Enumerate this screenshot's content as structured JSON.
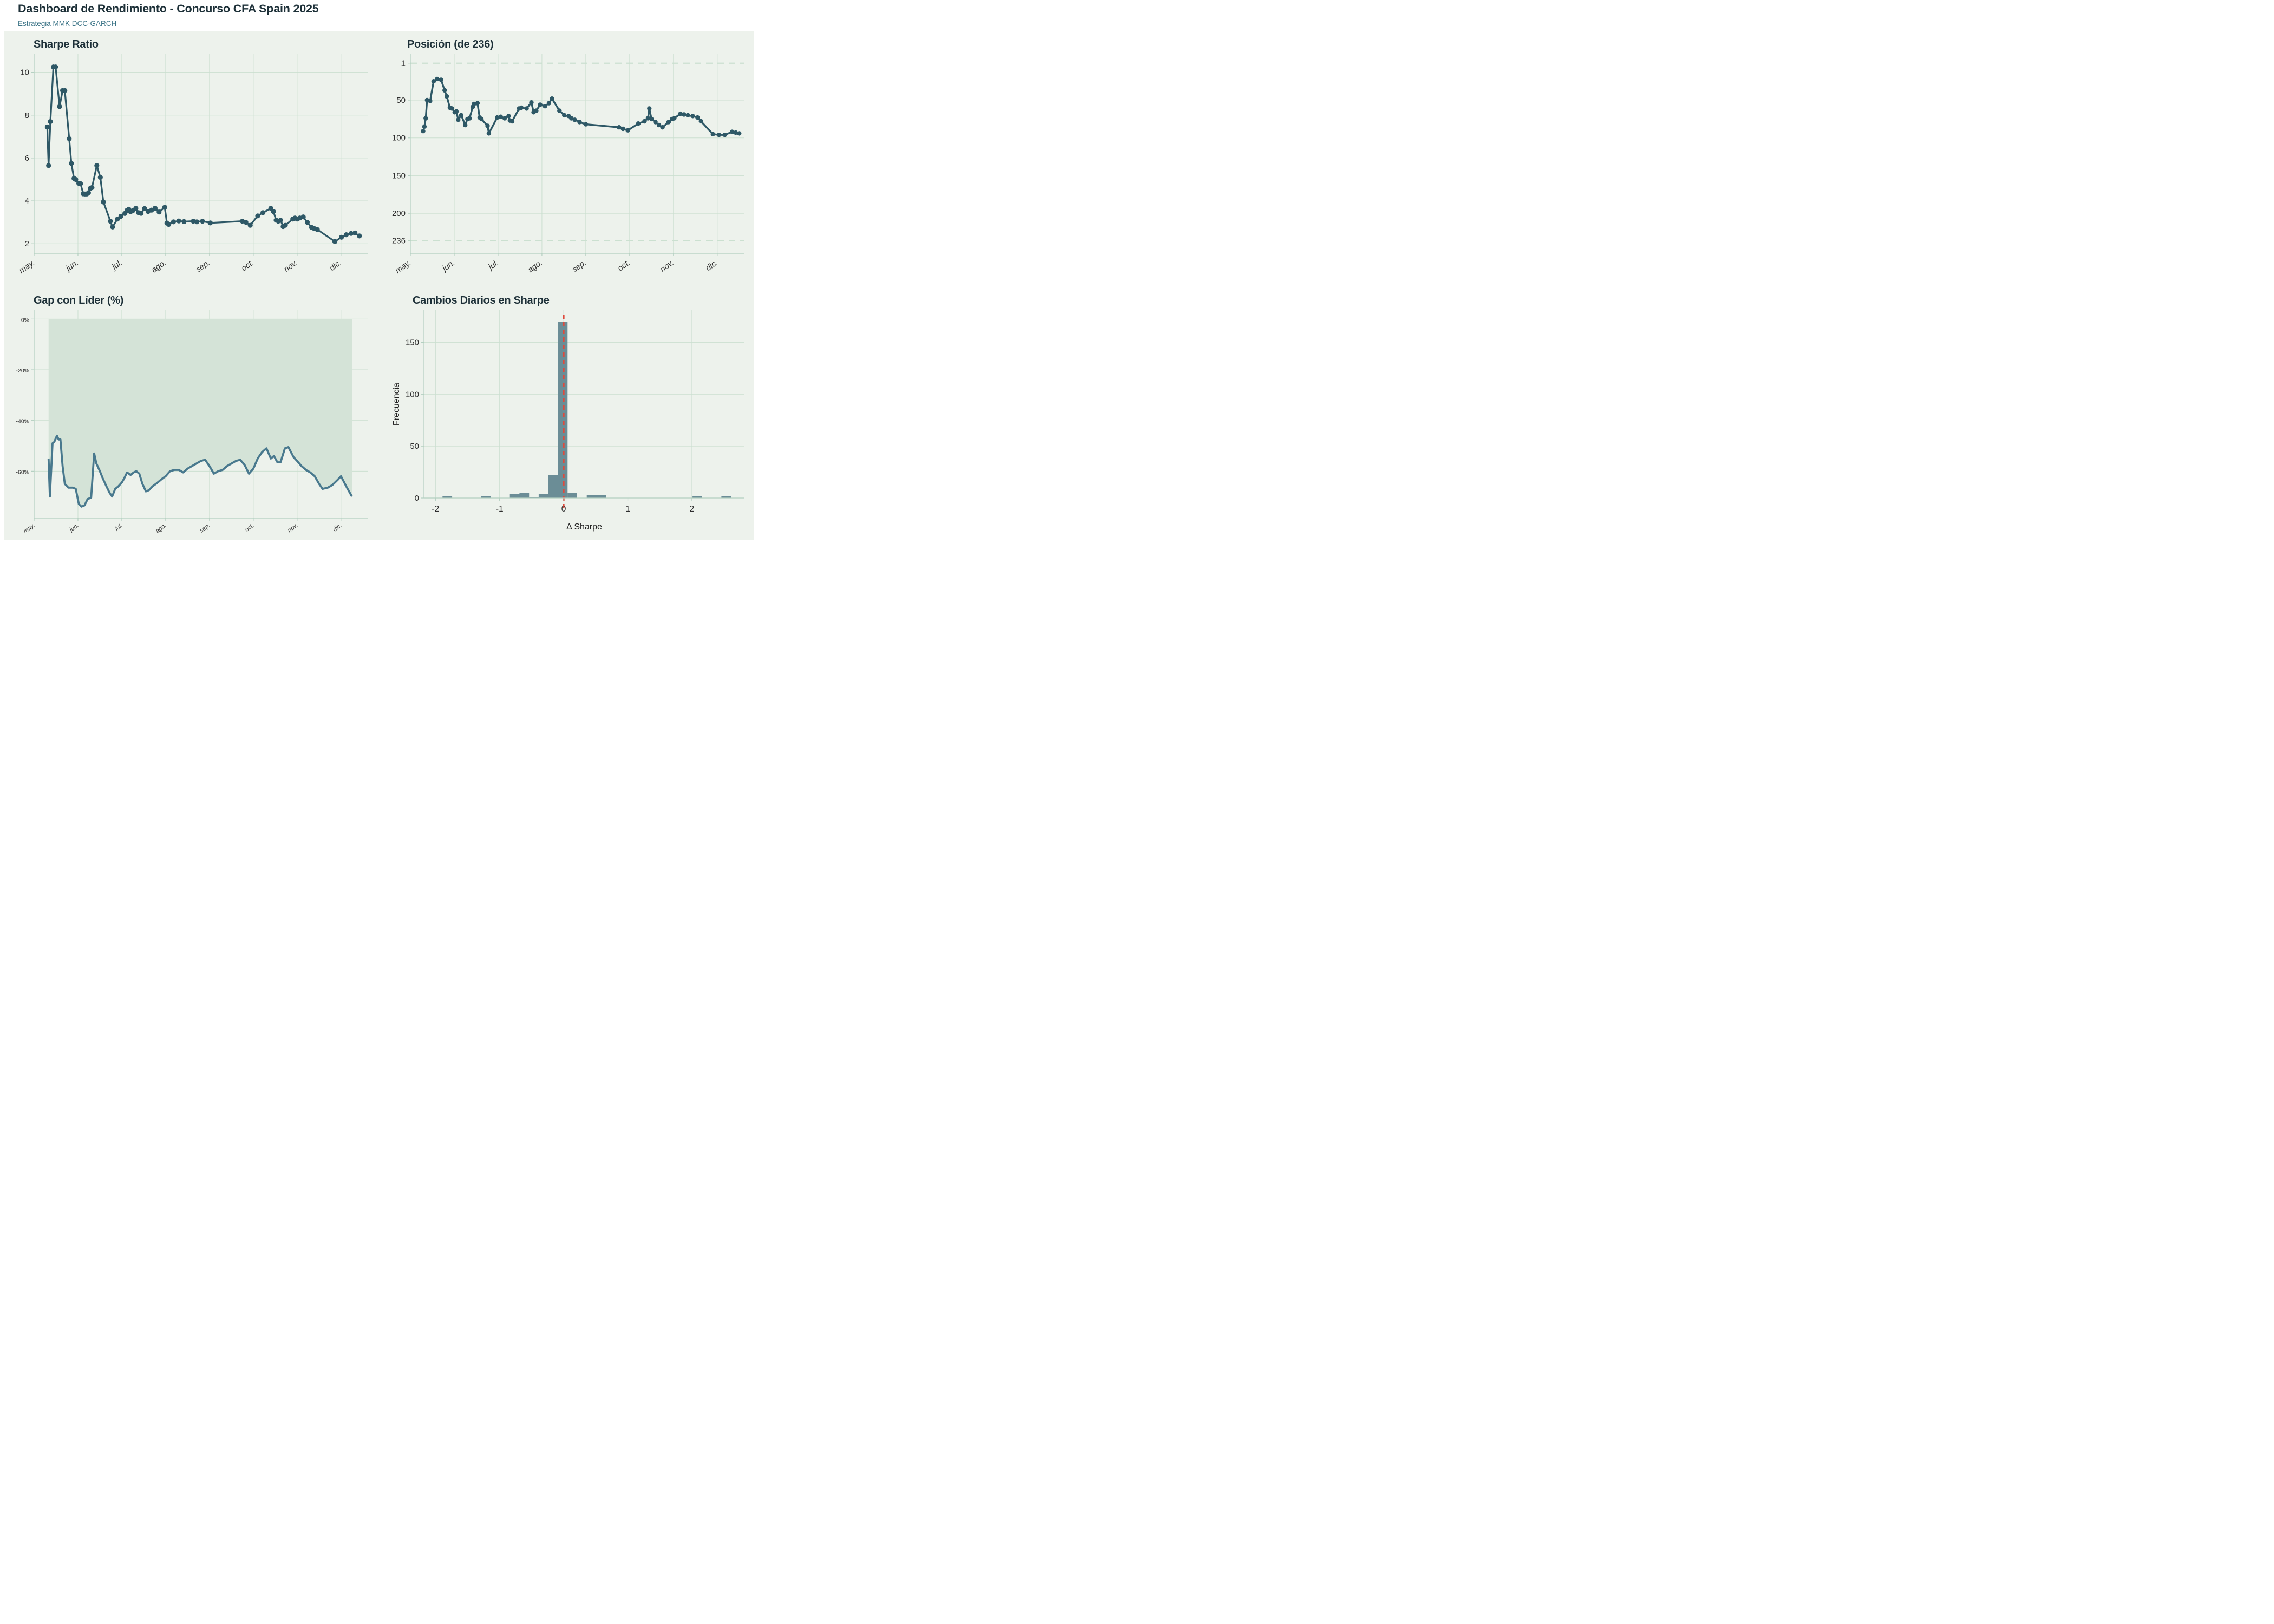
{
  "header": {
    "title": "Dashboard de Rendimiento - Concurso CFA Spain 2025",
    "subtitle": "Estrategia MMK DCC-GARCH"
  },
  "colors": {
    "page_bg": "#ffffff",
    "panel_bg": "#edf2ec",
    "grid": "#cbdfd0",
    "spine": "#b3cfc0",
    "refdash": "#cbe0d0",
    "tick_text": "#2e2e2e",
    "title_text": "#1d3038",
    "subtitle_text": "#3a7386",
    "line_dark": "#2e5866",
    "gap_line": "#49798e",
    "gap_fill": "#d4e3d7",
    "hist_bar": "#6b8d96",
    "ref_red": "#df4a3d"
  },
  "month_labels": [
    "may.",
    "jun.",
    "jul.",
    "ago.",
    "sep.",
    "oct.",
    "nov.",
    "dic."
  ],
  "chart_data": [
    {
      "type": "line",
      "title": "Sharpe Ratio",
      "markers": true,
      "month_axis": true,
      "x_unit": "months since may tick (0=may, 7=dic)",
      "xlim": [
        0,
        7.62
      ],
      "ylim": [
        10.85,
        1.55
      ],
      "xticks": [
        0,
        1,
        2,
        3,
        4,
        5,
        6,
        7
      ],
      "yticks": [
        2,
        4,
        6,
        8,
        10
      ],
      "grid": true,
      "series": [
        [
          0.3,
          7.45
        ],
        [
          0.33,
          5.65
        ],
        [
          0.37,
          7.7
        ],
        [
          0.44,
          10.25
        ],
        [
          0.49,
          10.25
        ],
        [
          0.58,
          8.4
        ],
        [
          0.65,
          9.15
        ],
        [
          0.7,
          9.15
        ],
        [
          0.8,
          6.9
        ],
        [
          0.85,
          5.75
        ],
        [
          0.91,
          5.05
        ],
        [
          0.95,
          5.0
        ],
        [
          1.02,
          4.82
        ],
        [
          1.06,
          4.8
        ],
        [
          1.12,
          4.33
        ],
        [
          1.16,
          4.32
        ],
        [
          1.2,
          4.32
        ],
        [
          1.24,
          4.38
        ],
        [
          1.28,
          4.58
        ],
        [
          1.32,
          4.62
        ],
        [
          1.43,
          5.65
        ],
        [
          1.51,
          5.1
        ],
        [
          1.58,
          3.95
        ],
        [
          1.74,
          3.05
        ],
        [
          1.79,
          2.78
        ],
        [
          1.9,
          3.15
        ],
        [
          1.98,
          3.28
        ],
        [
          2.07,
          3.41
        ],
        [
          2.12,
          3.56
        ],
        [
          2.16,
          3.61
        ],
        [
          2.2,
          3.49
        ],
        [
          2.25,
          3.54
        ],
        [
          2.32,
          3.65
        ],
        [
          2.38,
          3.45
        ],
        [
          2.44,
          3.42
        ],
        [
          2.52,
          3.64
        ],
        [
          2.6,
          3.5
        ],
        [
          2.68,
          3.57
        ],
        [
          2.76,
          3.66
        ],
        [
          2.85,
          3.48
        ],
        [
          2.98,
          3.7
        ],
        [
          3.03,
          2.96
        ],
        [
          3.07,
          2.9
        ],
        [
          3.18,
          3.02
        ],
        [
          3.3,
          3.06
        ],
        [
          3.42,
          3.03
        ],
        [
          3.63,
          3.05
        ],
        [
          3.71,
          3.02
        ],
        [
          3.84,
          3.05
        ],
        [
          4.02,
          2.97
        ],
        [
          4.75,
          3.05
        ],
        [
          4.83,
          3.0
        ],
        [
          4.93,
          2.86
        ],
        [
          5.1,
          3.3
        ],
        [
          5.22,
          3.45
        ],
        [
          5.4,
          3.65
        ],
        [
          5.46,
          3.5
        ],
        [
          5.52,
          3.1
        ],
        [
          5.57,
          3.05
        ],
        [
          5.62,
          3.1
        ],
        [
          5.68,
          2.8
        ],
        [
          5.73,
          2.86
        ],
        [
          5.9,
          3.15
        ],
        [
          5.95,
          3.2
        ],
        [
          6.0,
          3.15
        ],
        [
          6.06,
          3.2
        ],
        [
          6.14,
          3.25
        ],
        [
          6.23,
          3.0
        ],
        [
          6.33,
          2.76
        ],
        [
          6.38,
          2.72
        ],
        [
          6.46,
          2.66
        ],
        [
          6.86,
          2.1
        ],
        [
          7.01,
          2.3
        ],
        [
          7.12,
          2.42
        ],
        [
          7.23,
          2.48
        ],
        [
          7.32,
          2.5
        ],
        [
          7.42,
          2.36
        ]
      ]
    },
    {
      "type": "line",
      "title": "Posición (de 236)",
      "markers": true,
      "month_axis": true,
      "y_inverted": "rank 1 (best) at top, 236 at bottom",
      "x_unit": "months since may tick (0=may, 7=dic)",
      "xlim": [
        0,
        7.62
      ],
      "ylim": [
        -11,
        253
      ],
      "xticks": [
        0,
        1,
        2,
        3,
        4,
        5,
        6,
        7
      ],
      "grid_yticks": [
        50,
        100,
        150,
        200
      ],
      "yticks": [
        1,
        50,
        100,
        150,
        200,
        236
      ],
      "ref_dashed_y": [
        1,
        236
      ],
      "grid": true,
      "series": [
        [
          0.29,
          91
        ],
        [
          0.32,
          85
        ],
        [
          0.35,
          74
        ],
        [
          0.38,
          50
        ],
        [
          0.45,
          51
        ],
        [
          0.53,
          25
        ],
        [
          0.61,
          22
        ],
        [
          0.7,
          23
        ],
        [
          0.78,
          37
        ],
        [
          0.83,
          45
        ],
        [
          0.9,
          60
        ],
        [
          0.95,
          61
        ],
        [
          1.01,
          66
        ],
        [
          1.05,
          65
        ],
        [
          1.09,
          76
        ],
        [
          1.16,
          70
        ],
        [
          1.25,
          83
        ],
        [
          1.3,
          75
        ],
        [
          1.35,
          74
        ],
        [
          1.42,
          59
        ],
        [
          1.45,
          55
        ],
        [
          1.53,
          54
        ],
        [
          1.58,
          73
        ],
        [
          1.62,
          75
        ],
        [
          1.76,
          84
        ],
        [
          1.79,
          94
        ],
        [
          1.98,
          73
        ],
        [
          2.06,
          72
        ],
        [
          2.15,
          74
        ],
        [
          2.24,
          71
        ],
        [
          2.27,
          77
        ],
        [
          2.32,
          78
        ],
        [
          2.48,
          61
        ],
        [
          2.53,
          60
        ],
        [
          2.65,
          61
        ],
        [
          2.76,
          53
        ],
        [
          2.81,
          66
        ],
        [
          2.87,
          64
        ],
        [
          2.96,
          56
        ],
        [
          3.07,
          58
        ],
        [
          3.16,
          54
        ],
        [
          3.23,
          48
        ],
        [
          3.4,
          64
        ],
        [
          3.51,
          70
        ],
        [
          3.61,
          71
        ],
        [
          3.67,
          74
        ],
        [
          3.75,
          76
        ],
        [
          3.86,
          79
        ],
        [
          4.0,
          82
        ],
        [
          4.76,
          86
        ],
        [
          4.85,
          88
        ],
        [
          4.96,
          90
        ],
        [
          5.2,
          81
        ],
        [
          5.34,
          78
        ],
        [
          5.42,
          74
        ],
        [
          5.45,
          61
        ],
        [
          5.5,
          75
        ],
        [
          5.59,
          79
        ],
        [
          5.67,
          83
        ],
        [
          5.75,
          86
        ],
        [
          5.89,
          79
        ],
        [
          5.97,
          75
        ],
        [
          6.02,
          74
        ],
        [
          6.16,
          68
        ],
        [
          6.24,
          69
        ],
        [
          6.33,
          70
        ],
        [
          6.44,
          71
        ],
        [
          6.55,
          73
        ],
        [
          6.63,
          78
        ],
        [
          6.9,
          95
        ],
        [
          7.04,
          96
        ],
        [
          7.17,
          96
        ],
        [
          7.34,
          92
        ],
        [
          7.42,
          93
        ],
        [
          7.5,
          94
        ]
      ]
    },
    {
      "type": "area",
      "title": "Gap con Líder (%)",
      "markers": false,
      "month_axis": true,
      "fill_to": 0,
      "x_unit": "months since may tick (0=may, 7=dic)",
      "xlim": [
        0,
        7.62
      ],
      "ylim": [
        3.5,
        -78.5
      ],
      "xticks": [
        0,
        1,
        2,
        3,
        4,
        5,
        6,
        7
      ],
      "yticks": [
        0,
        -20,
        -40,
        -60
      ],
      "ytick_labels": [
        "0%",
        "-20%",
        "-40%",
        "-60%"
      ],
      "grid": true,
      "series": [
        [
          0.33,
          -55
        ],
        [
          0.36,
          -70
        ],
        [
          0.42,
          -49
        ],
        [
          0.46,
          -48.5
        ],
        [
          0.52,
          -46
        ],
        [
          0.56,
          -47.5
        ],
        [
          0.6,
          -47.5
        ],
        [
          0.65,
          -58
        ],
        [
          0.7,
          -65
        ],
        [
          0.78,
          -66.5
        ],
        [
          0.88,
          -66.5
        ],
        [
          0.95,
          -67
        ],
        [
          1.02,
          -73
        ],
        [
          1.08,
          -74
        ],
        [
          1.15,
          -73.5
        ],
        [
          1.22,
          -71
        ],
        [
          1.3,
          -70.5
        ],
        [
          1.37,
          -53
        ],
        [
          1.42,
          -57
        ],
        [
          1.5,
          -60
        ],
        [
          1.57,
          -63
        ],
        [
          1.65,
          -66
        ],
        [
          1.72,
          -68.5
        ],
        [
          1.78,
          -70
        ],
        [
          1.85,
          -67
        ],
        [
          1.92,
          -66
        ],
        [
          2.0,
          -64.5
        ],
        [
          2.05,
          -63
        ],
        [
          2.12,
          -60.5
        ],
        [
          2.2,
          -61.5
        ],
        [
          2.27,
          -60.5
        ],
        [
          2.33,
          -60
        ],
        [
          2.4,
          -61
        ],
        [
          2.47,
          -65
        ],
        [
          2.55,
          -68
        ],
        [
          2.62,
          -67.5
        ],
        [
          2.7,
          -66
        ],
        [
          2.78,
          -65
        ],
        [
          2.85,
          -64
        ],
        [
          2.92,
          -63
        ],
        [
          3.0,
          -62
        ],
        [
          3.1,
          -60
        ],
        [
          3.2,
          -59.5
        ],
        [
          3.3,
          -59.5
        ],
        [
          3.4,
          -60.5
        ],
        [
          3.5,
          -59
        ],
        [
          3.6,
          -58
        ],
        [
          3.7,
          -57
        ],
        [
          3.8,
          -56
        ],
        [
          3.9,
          -55.5
        ],
        [
          4.0,
          -58
        ],
        [
          4.1,
          -61
        ],
        [
          4.2,
          -60
        ],
        [
          4.3,
          -59.5
        ],
        [
          4.4,
          -58
        ],
        [
          4.5,
          -57
        ],
        [
          4.6,
          -56
        ],
        [
          4.7,
          -55.5
        ],
        [
          4.8,
          -57.5
        ],
        [
          4.9,
          -61
        ],
        [
          5.0,
          -59
        ],
        [
          5.1,
          -55
        ],
        [
          5.2,
          -52.5
        ],
        [
          5.3,
          -51
        ],
        [
          5.4,
          -55
        ],
        [
          5.47,
          -54
        ],
        [
          5.55,
          -56.5
        ],
        [
          5.62,
          -56.5
        ],
        [
          5.72,
          -51
        ],
        [
          5.8,
          -50.5
        ],
        [
          5.92,
          -54.5
        ],
        [
          6.0,
          -56
        ],
        [
          6.1,
          -58
        ],
        [
          6.2,
          -59.5
        ],
        [
          6.3,
          -60.5
        ],
        [
          6.4,
          -62
        ],
        [
          6.5,
          -65
        ],
        [
          6.58,
          -67
        ],
        [
          6.7,
          -66.5
        ],
        [
          6.8,
          -65.5
        ],
        [
          6.92,
          -63.5
        ],
        [
          7.0,
          -62
        ],
        [
          7.12,
          -66
        ],
        [
          7.25,
          -70
        ]
      ]
    },
    {
      "type": "histogram",
      "title": "Cambios Diarios en Sharpe",
      "xlabel": "Δ Sharpe",
      "ylabel": "Frecuencia",
      "bin_width": 0.15,
      "xlim": [
        -2.18,
        2.82
      ],
      "ylim": [
        181,
        0
      ],
      "xticks": [
        -2,
        -1,
        0,
        1,
        2
      ],
      "yticks": [
        0,
        50,
        100,
        150
      ],
      "ref_x": 0,
      "grid": true,
      "bars": [
        [
          -1.89,
          2
        ],
        [
          -1.29,
          2
        ],
        [
          -0.84,
          4
        ],
        [
          -0.69,
          5
        ],
        [
          -0.54,
          1
        ],
        [
          -0.39,
          4
        ],
        [
          -0.24,
          22
        ],
        [
          -0.09,
          170
        ],
        [
          0.06,
          5
        ],
        [
          0.36,
          3
        ],
        [
          0.51,
          3
        ],
        [
          2.01,
          2
        ],
        [
          2.46,
          2
        ]
      ]
    }
  ]
}
